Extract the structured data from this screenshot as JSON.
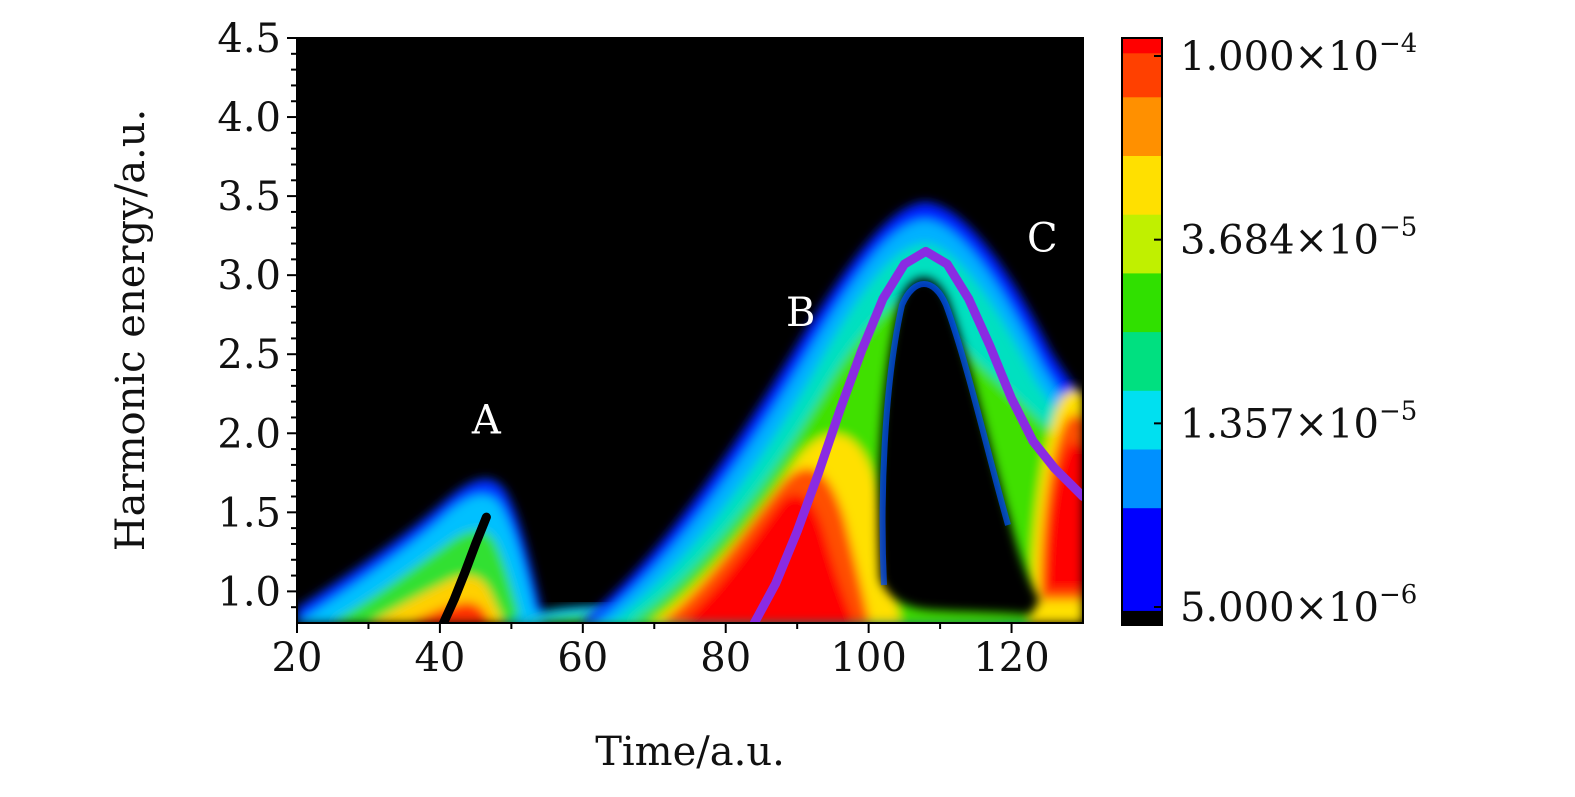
{
  "chart_data": {
    "type": "heatmap",
    "xlabel": "Time/a.u.",
    "ylabel": "Harmonic energy/a.u.",
    "xlim": [
      20,
      130
    ],
    "ylim": [
      0.8,
      4.5
    ],
    "xticks": [
      "20",
      "40",
      "60",
      "80",
      "100",
      "120"
    ],
    "yticks": [
      "1.0",
      "1.5",
      "2.0",
      "2.5",
      "3.0",
      "3.5",
      "4.0",
      "4.5"
    ],
    "background_color": "#000000",
    "colorbar": {
      "labels": [
        {
          "mantissa": "1.000",
          "times": "×",
          "base": "10",
          "exponent": "−4",
          "value": 0.0001
        },
        {
          "mantissa": "3.684",
          "times": "×",
          "base": "10",
          "exponent": "−5",
          "value": 3.684e-05
        },
        {
          "mantissa": "1.357",
          "times": "×",
          "base": "10",
          "exponent": "−5",
          "value": 1.357e-05
        },
        {
          "mantissa": "5.000",
          "times": "×",
          "base": "10",
          "exponent": "−6",
          "value": 5e-06
        }
      ],
      "scale": "log",
      "colors": [
        "#000000",
        "#0000ff",
        "#0090ff",
        "#00e0f0",
        "#00e080",
        "#30e000",
        "#c0f000",
        "#ffe000",
        "#ff9000",
        "#ff4000",
        "#ff0000"
      ]
    },
    "region_labels": [
      {
        "text": "A",
        "x": 46.5,
        "y": 2.0
      },
      {
        "text": "B",
        "x": 90.5,
        "y": 2.68
      },
      {
        "text": "C",
        "x": 124.3,
        "y": 3.15
      }
    ],
    "lobes": [
      {
        "name": "A",
        "peak_x": 47,
        "peak_y": 1.7,
        "start_x": 20,
        "end_x": 55
      },
      {
        "name": "B",
        "peak_x": 108,
        "peak_y": 3.45,
        "start_x": 60,
        "end_x": 130
      }
    ],
    "series": [
      {
        "color": "#000000",
        "x": [
          40.5,
          42,
          43.5,
          45,
          46.5
        ],
        "y": [
          0.8,
          0.95,
          1.12,
          1.3,
          1.47
        ]
      },
      {
        "color": "#8a2be2",
        "x": [
          84,
          87,
          90,
          93,
          96,
          99,
          102,
          105,
          108,
          111,
          114,
          117,
          120,
          123,
          126,
          130
        ],
        "y": [
          0.8,
          1.05,
          1.38,
          1.75,
          2.15,
          2.52,
          2.85,
          3.07,
          3.15,
          3.07,
          2.85,
          2.55,
          2.22,
          1.95,
          1.78,
          1.6
        ]
      }
    ]
  }
}
